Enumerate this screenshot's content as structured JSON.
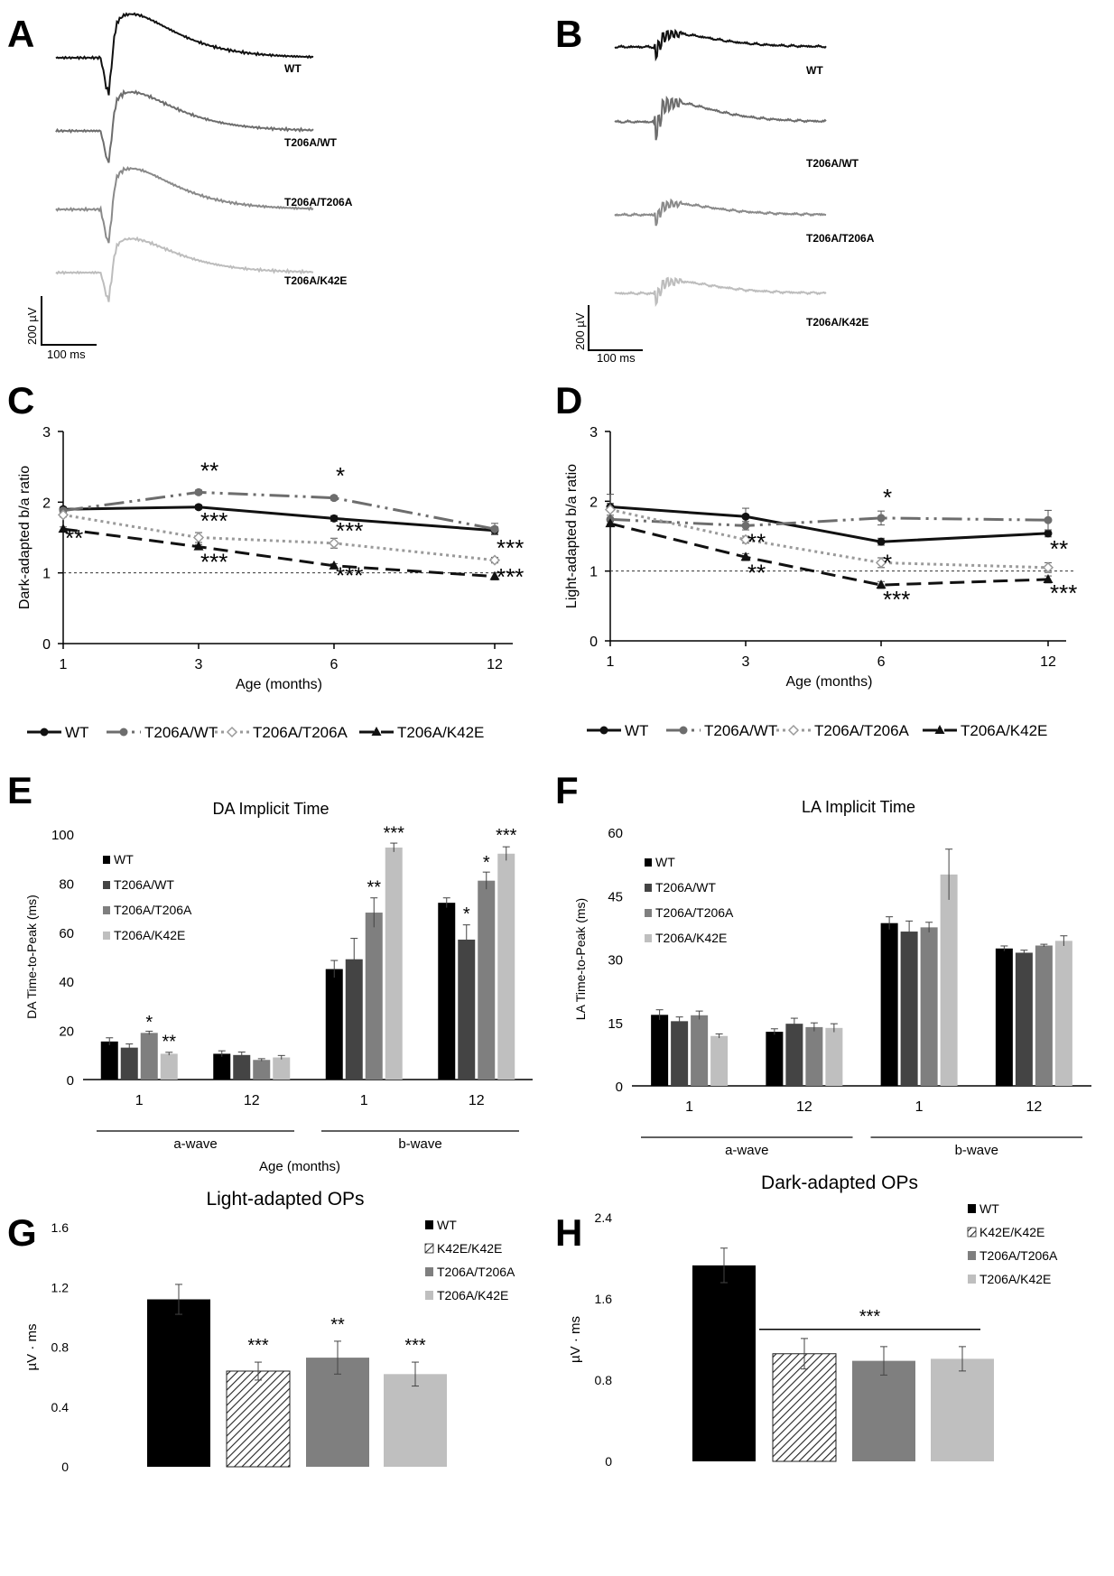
{
  "panel_labels": [
    "A",
    "B",
    "C",
    "D",
    "E",
    "F",
    "G",
    "H"
  ],
  "traces": {
    "A": {
      "labels": [
        "WT",
        "T206A/WT",
        "T206A/T206A",
        "T206A/K42E"
      ],
      "colors": [
        "#111111",
        "#6d6d6d",
        "#8a8a8a",
        "#bdbdbd"
      ],
      "scale_v": "200 µV",
      "scale_t": "100 ms"
    },
    "B": {
      "labels": [
        "WT",
        "T206A/WT",
        "T206A/T206A",
        "T206A/K42E"
      ],
      "colors": [
        "#111111",
        "#6d6d6d",
        "#8a8a8a",
        "#bdbdbd"
      ],
      "scale_v": "200 µV",
      "scale_t": "100 ms"
    }
  },
  "legend_cd": [
    "WT",
    "T206A/WT",
    "T206A/T206A",
    "T206A/K42E"
  ],
  "x_axis_title_ef": "Age (months)",
  "chart_data": [
    {
      "panel": "C",
      "type": "line",
      "x": [
        1,
        3,
        6,
        12
      ],
      "xticks": [
        "1",
        "3",
        "6",
        "12"
      ],
      "xlabel": "Age (months)",
      "ylabel": "Dark-adapted b/a ratio",
      "ylim": [
        0,
        3
      ],
      "yticks": [
        "0",
        "1",
        "2",
        "3"
      ],
      "reference_y": 1,
      "series": [
        {
          "name": "WT",
          "values": [
            1.9,
            1.93,
            1.77,
            1.6
          ],
          "err": [
            0.03,
            0.03,
            0.04,
            0.05
          ],
          "color": "#111111",
          "dash": "",
          "marker": "circle"
        },
        {
          "name": "T206A/WT",
          "values": [
            1.88,
            2.14,
            2.06,
            1.62
          ],
          "err": [
            0.03,
            0.03,
            0.03,
            0.08
          ],
          "color": "#6d6d6d",
          "dash": "22,6,3,6,3,6",
          "marker": "circle"
        },
        {
          "name": "T206A/T206A",
          "values": [
            1.82,
            1.5,
            1.42,
            1.18
          ],
          "err": [
            0.03,
            0.07,
            0.07,
            0.04
          ],
          "color": "#9a9a9a",
          "dash": "3,4",
          "marker": "diamond"
        },
        {
          "name": "T206A/K42E",
          "values": [
            1.62,
            1.37,
            1.1,
            0.95
          ],
          "err": [
            0.03,
            0.03,
            0.03,
            0.05
          ],
          "color": "#111111",
          "dash": "16,8",
          "marker": "triangle"
        }
      ],
      "annotations": [
        {
          "text": "**",
          "x": 3,
          "y": 2.33
        },
        {
          "text": "*",
          "x": 6,
          "y": 2.26
        },
        {
          "text": "***",
          "x": 3,
          "y": 1.62
        },
        {
          "text": "***",
          "x": 6,
          "y": 1.48
        },
        {
          "text": "***",
          "x": 12,
          "y": 1.24
        },
        {
          "text": "**",
          "x": 1,
          "y": 1.38
        },
        {
          "text": "***",
          "x": 3,
          "y": 1.04
        },
        {
          "text": "***",
          "x": 6,
          "y": 0.85
        },
        {
          "text": "***",
          "x": 12,
          "y": 0.83
        }
      ]
    },
    {
      "panel": "D",
      "type": "line",
      "x": [
        1,
        3,
        6,
        12
      ],
      "xticks": [
        "1",
        "3",
        "6",
        "12"
      ],
      "xlabel": "Age (months)",
      "ylabel": "Light-adapted b/a ratio",
      "ylim": [
        0,
        3
      ],
      "yticks": [
        "0",
        "1",
        "2",
        "3"
      ],
      "reference_y": 1,
      "series": [
        {
          "name": "WT",
          "values": [
            1.92,
            1.78,
            1.42,
            1.54
          ],
          "err": [
            0.05,
            0.12,
            0.05,
            0.05
          ],
          "color": "#111111",
          "dash": "",
          "marker": "circle"
        },
        {
          "name": "T206A/WT",
          "values": [
            1.74,
            1.65,
            1.76,
            1.73
          ],
          "err": [
            0.06,
            0.06,
            0.1,
            0.14
          ],
          "color": "#6d6d6d",
          "dash": "22,6,3,6,3,6",
          "marker": "circle"
        },
        {
          "name": "T206A/T206A",
          "values": [
            1.88,
            1.45,
            1.12,
            1.05
          ],
          "err": [
            0.22,
            0.05,
            0.07,
            0.07
          ],
          "color": "#9a9a9a",
          "dash": "3,4",
          "marker": "diamond"
        },
        {
          "name": "T206A/K42E",
          "values": [
            1.68,
            1.2,
            0.8,
            0.88
          ],
          "err": [
            0.03,
            0.05,
            0.05,
            0.05
          ],
          "color": "#111111",
          "dash": "16,8",
          "marker": "triangle"
        }
      ],
      "annotations": [
        {
          "text": "*",
          "x": 6,
          "y": 1.94
        },
        {
          "text": "**",
          "x": 3,
          "y": 1.3
        },
        {
          "text": "*",
          "x": 6,
          "y": 1.0
        },
        {
          "text": "**",
          "x": 12,
          "y": 1.2
        },
        {
          "text": "**",
          "x": 3,
          "y": 0.86
        },
        {
          "text": "***",
          "x": 6,
          "y": 0.48
        },
        {
          "text": "***",
          "x": 12,
          "y": 0.57
        }
      ]
    },
    {
      "panel": "E",
      "type": "bar",
      "title": "DA Implicit Time",
      "ylabel": "DA Time-to-Peak (ms)",
      "ylim": [
        0,
        100
      ],
      "yticks": [
        "0",
        "20",
        "40",
        "60",
        "80",
        "100"
      ],
      "categories": [
        "1",
        "12",
        "1",
        "12"
      ],
      "groups": [
        {
          "label": "a-wave",
          "members": [
            0,
            1
          ]
        },
        {
          "label": "b-wave",
          "members": [
            2,
            3
          ]
        }
      ],
      "series": [
        {
          "name": "WT",
          "values": [
            15.5,
            10.5,
            45,
            72
          ],
          "err": [
            1.5,
            1.2,
            3.5,
            2
          ],
          "color": "#000000"
        },
        {
          "name": "T206A/WT",
          "values": [
            13,
            10,
            49,
            57
          ],
          "err": [
            1.5,
            1.2,
            8.5,
            6
          ],
          "color": "#444444"
        },
        {
          "name": "T206A/T206A",
          "values": [
            19,
            8,
            68,
            81
          ],
          "err": [
            0.7,
            0.5,
            6,
            3.5
          ],
          "color": "#7f7f7f"
        },
        {
          "name": "T206A/K42E",
          "values": [
            10.5,
            9,
            94.5,
            92
          ],
          "err": [
            0.6,
            0.8,
            1.8,
            2.8
          ],
          "color": "#bfbfbf"
        }
      ],
      "annotations": [
        {
          "text": "*",
          "cat": 0,
          "series": 2,
          "y": 21
        },
        {
          "text": "**",
          "cat": 0,
          "series": 3,
          "y": 13
        },
        {
          "text": "**",
          "cat": 2,
          "series": 2,
          "y": 76
        },
        {
          "text": "***",
          "cat": 2,
          "series": 3,
          "y": 98
        },
        {
          "text": "*",
          "cat": 3,
          "series": 1,
          "y": 65
        },
        {
          "text": "*",
          "cat": 3,
          "series": 2,
          "y": 86
        },
        {
          "text": "***",
          "cat": 3,
          "series": 3,
          "y": 97
        }
      ]
    },
    {
      "panel": "F",
      "type": "bar",
      "title": "LA Implicit Time",
      "ylabel": "LA Time-to-Peak (ms)",
      "ylim": [
        0,
        60
      ],
      "yticks": [
        "0",
        "15",
        "30",
        "45",
        "60"
      ],
      "categories": [
        "1",
        "12",
        "1",
        "12"
      ],
      "groups": [
        {
          "label": "a-wave",
          "members": [
            0,
            1
          ]
        },
        {
          "label": "b-wave",
          "members": [
            2,
            3
          ]
        }
      ],
      "series": [
        {
          "name": "WT",
          "values": [
            16.8,
            12.8,
            38.5,
            32.5
          ],
          "err": [
            1.2,
            0.7,
            1.5,
            0.6
          ],
          "color": "#000000"
        },
        {
          "name": "T206A/WT",
          "values": [
            15.3,
            14.7,
            36.5,
            31.5
          ],
          "err": [
            1,
            1.3,
            2.5,
            0.6
          ],
          "color": "#444444"
        },
        {
          "name": "T206A/T206A",
          "values": [
            16.7,
            13.9,
            37.5,
            33.2
          ],
          "err": [
            1,
            1,
            1.2,
            0.3
          ],
          "color": "#7f7f7f"
        },
        {
          "name": "T206A/K42E",
          "values": [
            11.8,
            13.7,
            50,
            34.3
          ],
          "err": [
            0.5,
            1,
            6,
            1.2
          ],
          "color": "#bfbfbf"
        }
      ],
      "annotations": []
    },
    {
      "panel": "G",
      "type": "bar",
      "title": "Light-adapted OPs",
      "ylabel": "µV · ms",
      "ylim": [
        0,
        1.6
      ],
      "yticks": [
        "0",
        "0.4",
        "0.8",
        "1.2",
        "1.6"
      ],
      "series": [
        {
          "name": "WT",
          "value": 1.12,
          "err": 0.1,
          "color": "#000000",
          "pattern": false
        },
        {
          "name": "K42E/K42E",
          "value": 0.64,
          "err": 0.06,
          "color": "#ffffff",
          "pattern": true
        },
        {
          "name": "T206A/T206A",
          "value": 0.73,
          "err": 0.11,
          "color": "#7f7f7f",
          "pattern": false
        },
        {
          "name": "T206A/K42E",
          "value": 0.62,
          "err": 0.08,
          "color": "#bfbfbf",
          "pattern": false
        }
      ],
      "annotations": [
        {
          "text": "***",
          "bar": 1
        },
        {
          "text": "**",
          "bar": 2
        },
        {
          "text": "***",
          "bar": 3
        }
      ]
    },
    {
      "panel": "H",
      "type": "bar",
      "title": "Dark-adapted OPs",
      "ylabel": "µV · ms",
      "ylim": [
        0,
        2.4
      ],
      "yticks": [
        "0",
        "0.8",
        "1.6",
        "2.4"
      ],
      "series": [
        {
          "name": "WT",
          "value": 1.93,
          "err": 0.17,
          "color": "#000000",
          "pattern": false
        },
        {
          "name": "K42E/K42E",
          "value": 1.06,
          "err": 0.15,
          "color": "#ffffff",
          "pattern": true
        },
        {
          "name": "T206A/T206A",
          "value": 0.99,
          "err": 0.14,
          "color": "#7f7f7f",
          "pattern": false
        },
        {
          "name": "T206A/K42E",
          "value": 1.01,
          "err": 0.12,
          "color": "#bfbfbf",
          "pattern": false
        }
      ],
      "bracket": {
        "text": "***",
        "from": 1,
        "to": 3,
        "y": 1.3
      }
    }
  ]
}
